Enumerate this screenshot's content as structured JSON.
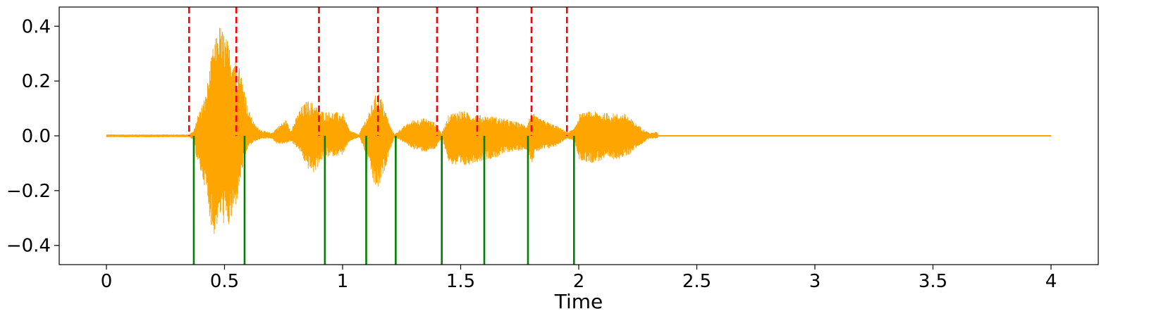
{
  "chart_data": {
    "type": "line",
    "title": "",
    "xlabel": "Time",
    "ylabel": "",
    "xlim": [
      -0.2,
      4.2
    ],
    "ylim": [
      -0.47,
      0.47
    ],
    "x_ticks": [
      0,
      0.5,
      1,
      1.5,
      2,
      2.5,
      3,
      3.5,
      4
    ],
    "x_tick_labels": [
      "0",
      "0.5",
      "1",
      "1.5",
      "2",
      "2.5",
      "3",
      "3.5",
      "4"
    ],
    "y_ticks": [
      0.4,
      0.2,
      0.0,
      -0.2,
      -0.4
    ],
    "y_tick_labels": [
      "0.4",
      "0.2",
      "0.0",
      "−0.2",
      "−0.4"
    ],
    "grid": false,
    "series": [
      {
        "kind": "waveform-envelope",
        "color": "#ffa500",
        "x_end": 4.0,
        "envelope_x": [
          0.0,
          0.35,
          0.37,
          0.38,
          0.42,
          0.45,
          0.48,
          0.5,
          0.52,
          0.55,
          0.58,
          0.6,
          0.63,
          0.66,
          0.7,
          0.72,
          0.76,
          0.78,
          0.82,
          0.85,
          0.88,
          0.9,
          0.92,
          1.0,
          1.03,
          1.07,
          1.09,
          1.11,
          1.13,
          1.15,
          1.18,
          1.2,
          1.22,
          1.25,
          1.3,
          1.35,
          1.39,
          1.42,
          1.45,
          1.5,
          1.55,
          1.6,
          1.65,
          1.7,
          1.78,
          1.8,
          1.82,
          1.9,
          1.95,
          1.98,
          2.0,
          2.05,
          2.1,
          2.2,
          2.25,
          2.3,
          2.33,
          2.34
        ],
        "envelope_upper": [
          0.005,
          0.005,
          0.02,
          0.06,
          0.15,
          0.32,
          0.41,
          0.38,
          0.33,
          0.3,
          0.2,
          0.1,
          0.04,
          0.02,
          0.01,
          0.03,
          0.06,
          0.02,
          0.1,
          0.13,
          0.12,
          0.1,
          0.09,
          0.085,
          0.02,
          0.005,
          0.05,
          0.08,
          0.13,
          0.17,
          0.1,
          0.04,
          0.005,
          0.03,
          0.06,
          0.065,
          0.05,
          0.01,
          0.08,
          0.095,
          0.08,
          0.075,
          0.07,
          0.06,
          0.04,
          0.09,
          0.07,
          0.04,
          0.015,
          0.025,
          0.08,
          0.09,
          0.085,
          0.08,
          0.04,
          0.01,
          0.015,
          0.0
        ],
        "envelope_lower": [
          -0.005,
          -0.005,
          -0.02,
          -0.08,
          -0.2,
          -0.38,
          -0.3,
          -0.33,
          -0.34,
          -0.25,
          -0.1,
          -0.04,
          -0.02,
          -0.01,
          -0.01,
          -0.03,
          -0.03,
          -0.02,
          -0.06,
          -0.12,
          -0.14,
          -0.1,
          -0.08,
          -0.07,
          -0.02,
          -0.005,
          -0.05,
          -0.1,
          -0.18,
          -0.2,
          -0.12,
          -0.05,
          -0.005,
          -0.02,
          -0.05,
          -0.06,
          -0.05,
          -0.01,
          -0.1,
          -0.12,
          -0.1,
          -0.09,
          -0.08,
          -0.06,
          -0.05,
          -0.1,
          -0.06,
          -0.04,
          -0.01,
          -0.02,
          -0.09,
          -0.1,
          -0.09,
          -0.08,
          -0.04,
          -0.01,
          -0.01,
          0.0
        ]
      }
    ],
    "vlines": [
      {
        "style": "dashed",
        "color": "#ff0000",
        "y_from": 0.0,
        "y_to": 0.47,
        "x": [
          0.35,
          0.55,
          0.9,
          1.15,
          1.4,
          1.57,
          1.8,
          1.95
        ]
      },
      {
        "style": "solid",
        "color": "#008000",
        "y_from": -0.47,
        "y_to": 0.0,
        "x": [
          0.37,
          0.585,
          0.925,
          1.1,
          1.225,
          1.42,
          1.6,
          1.785,
          1.98
        ]
      }
    ]
  }
}
